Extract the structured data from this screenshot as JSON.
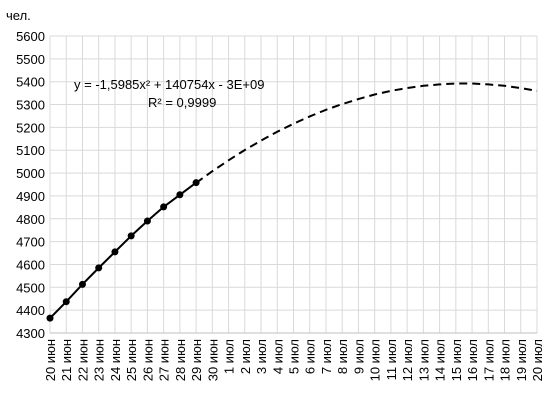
{
  "chart_data": {
    "type": "line",
    "y_label": "чел.",
    "annotations": [
      "y = -1,5985x² + 140754x - 3E+09",
      "R² = 0,9999"
    ],
    "categories": [
      "20 июн",
      "21 июн",
      "22 июн",
      "23 июн",
      "24 июн",
      "25 июн",
      "26 июн",
      "27 июн",
      "28 июн",
      "29 июн",
      "30 июн",
      "1 июл",
      "2 июл",
      "3 июл",
      "4 июл",
      "5 июл",
      "6 июл",
      "7 июл",
      "8 июл",
      "9 июл",
      "10 июл",
      "11 июл",
      "12 июл",
      "13 июл",
      "14 июл",
      "15 июл",
      "16 июл",
      "17 июл",
      "18 июл",
      "19 июл",
      "20 июл"
    ],
    "series": [
      {
        "color": "#000000",
        "dashed": false,
        "markers": true,
        "values": [
          4365,
          4437,
          4513,
          4585,
          4655,
          4725,
          4790,
          4852,
          4905,
          4958,
          null,
          null,
          null,
          null,
          null,
          null,
          null,
          null,
          null,
          null,
          null,
          null,
          null,
          null,
          null,
          null,
          null,
          null,
          null,
          null,
          null
        ]
      },
      {
        "color": "#000000",
        "dashed": true,
        "markers": false,
        "values": [
          null,
          null,
          null,
          null,
          null,
          null,
          null,
          null,
          null,
          4957,
          5008,
          5056,
          5101,
          5142,
          5181,
          5216,
          5248,
          5277,
          5302,
          5324,
          5344,
          5360,
          5372,
          5382,
          5388,
          5392,
          5392,
          5388,
          5382,
          5372,
          5360
        ]
      }
    ],
    "ylim": [
      4300,
      5600
    ],
    "yticks": [
      4300,
      4400,
      4500,
      4600,
      4700,
      4800,
      4900,
      5000,
      5100,
      5200,
      5300,
      5400,
      5500,
      5600
    ],
    "grid": true
  }
}
